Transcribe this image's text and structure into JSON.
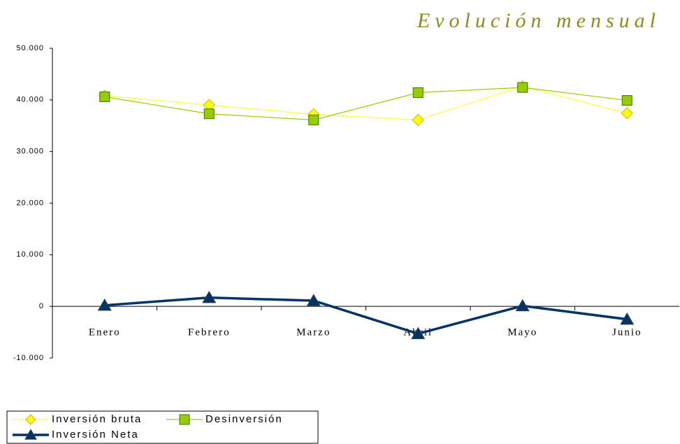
{
  "chart_data": {
    "type": "line",
    "title": "Evolución mensual",
    "categories": [
      "Enero",
      "Febrero",
      "Marzo",
      "Abril",
      "Mayo",
      "Junio"
    ],
    "series": [
      {
        "name": "Inversión bruta",
        "color": "#ffff00",
        "values": [
          40800,
          39000,
          37200,
          36100,
          42600,
          37400
        ]
      },
      {
        "name": "Desinversión",
        "color": "#99cc00",
        "values": [
          40600,
          37300,
          36100,
          41400,
          42400,
          39900
        ]
      },
      {
        "name": "Inversión Neta",
        "color": "#003366",
        "values": [
          200,
          1700,
          1100,
          -5300,
          100,
          -2500
        ]
      }
    ],
    "ylim": [
      -10000,
      50000
    ],
    "yticks": [
      {
        "value": -10000,
        "label": "-10.000"
      },
      0,
      {
        "value": 10000,
        "label": "10.000"
      },
      {
        "value": 20000,
        "label": "20.000"
      },
      {
        "value": 30000,
        "label": "30.000"
      },
      {
        "value": 40000,
        "label": "40.000"
      },
      {
        "value": 50000,
        "label": "50.000"
      }
    ],
    "legend": "bottom-left"
  }
}
